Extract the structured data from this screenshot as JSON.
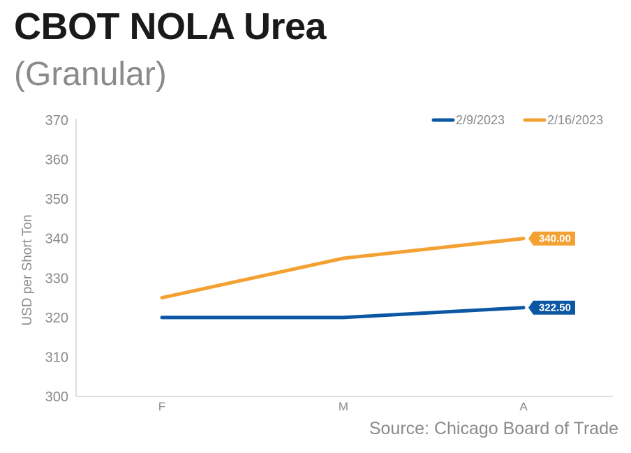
{
  "chart_data": {
    "type": "line",
    "title": "CBOT NOLA Urea",
    "subtitle": "(Granular)",
    "xlabel": "",
    "ylabel": "USD per Short Ton",
    "categories": [
      "F",
      "M",
      "A"
    ],
    "ylim": [
      300,
      370
    ],
    "yticks": [
      300,
      310,
      320,
      330,
      340,
      350,
      360,
      370
    ],
    "series": [
      {
        "name": "2/9/2023",
        "color": "#0b57a3",
        "values": [
          320,
          320,
          322.5
        ],
        "end_label": "322.50"
      },
      {
        "name": "2/16/2023",
        "color": "#f4a133",
        "values": [
          325,
          335,
          340
        ],
        "end_label": "340.00"
      }
    ],
    "legend_position": "top-right",
    "grid": false,
    "source": "Source: Chicago Board of Trade"
  }
}
